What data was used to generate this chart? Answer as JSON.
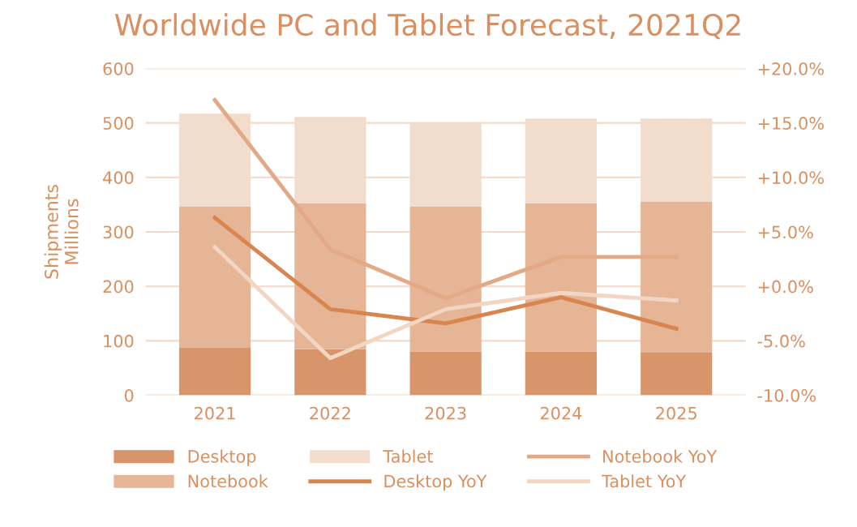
{
  "chart_data": {
    "type": "bar",
    "title": "Worldwide PC and Tablet Forecast, 2021Q2",
    "ylabel": "Shipments\nMillions",
    "stacked": true,
    "categories": [
      "2021",
      "2022",
      "2023",
      "2024",
      "2025"
    ],
    "series": [
      {
        "name": "Desktop",
        "color": "#d9956a",
        "values": [
          87,
          85,
          80,
          80,
          78
        ]
      },
      {
        "name": "Notebook",
        "color": "#e5b596",
        "values": [
          259,
          268,
          266,
          272,
          278
        ]
      },
      {
        "name": "Tablet",
        "color": "#f2ddcd",
        "values": [
          171,
          158,
          154,
          156,
          152
        ]
      },
      {
        "name": "Desktop YoY",
        "type": "line",
        "axis": "y2",
        "color": "#d9854f",
        "values": [
          6.3,
          -2.1,
          -3.4,
          -1.0,
          -3.9
        ]
      },
      {
        "name": "Notebook YoY",
        "type": "line",
        "axis": "y2",
        "color": "#e3a986",
        "values": [
          17.1,
          3.4,
          -1.1,
          2.7,
          2.7
        ]
      },
      {
        "name": "Tablet YoY",
        "type": "line",
        "axis": "y2",
        "color": "#f2d6c2",
        "values": [
          3.6,
          -6.6,
          -2.1,
          -0.6,
          -1.3
        ]
      }
    ],
    "ylim": [
      0,
      600
    ],
    "yticks": [
      0,
      100,
      200,
      300,
      400,
      500,
      600
    ],
    "y2lim": [
      -10,
      20
    ],
    "y2ticks": [
      {
        "value": 20,
        "label": "+20.0%"
      },
      {
        "value": 15,
        "label": "+15.0%"
      },
      {
        "value": 10,
        "label": "+10.0%"
      },
      {
        "value": 5,
        "label": "+5.0%"
      },
      {
        "value": 0,
        "label": "+0.0%"
      },
      {
        "value": -5,
        "label": "-5.0%"
      },
      {
        "value": -10,
        "label": "-10.0%"
      }
    ],
    "grid": "y",
    "legend": "bottom"
  }
}
